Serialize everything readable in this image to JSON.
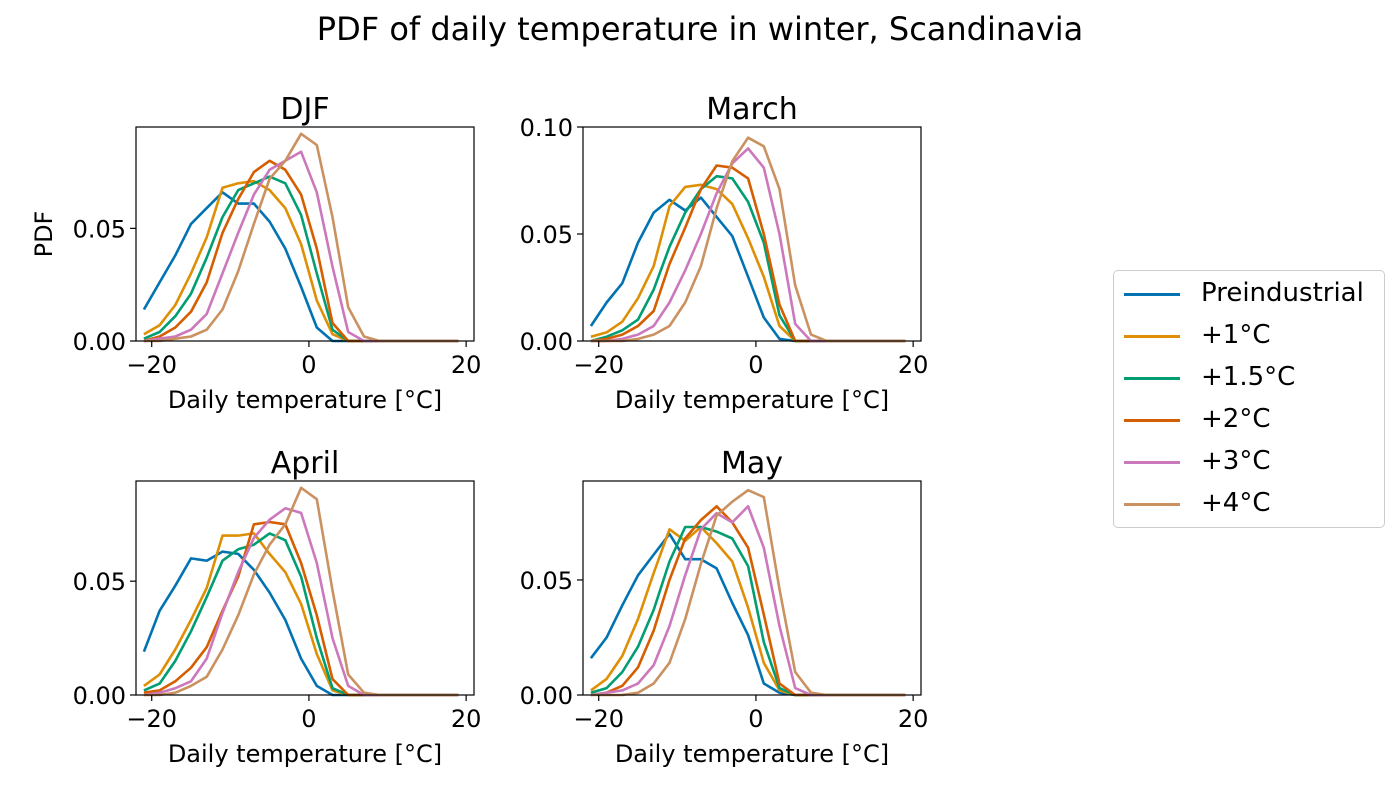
{
  "figure": {
    "suptitle": "PDF of daily temperature in winter, Scandinavia"
  },
  "legend": {
    "placement": "center-right",
    "entries": [
      "Preindustrial",
      "+1°C",
      "+1.5°C",
      "+2°C",
      "+3°C",
      "+4°C"
    ]
  },
  "colors": {
    "Preindustrial": "#0173b2",
    "+1°C": "#de8f05",
    "+1.5°C": "#029e73",
    "+2°C": "#d55e00",
    "+3°C": "#cc78bc",
    "+4°C": "#ca9161"
  },
  "chart_data": [
    {
      "type": "line",
      "title": "DJF",
      "xlabel": "Daily temperature [°C]",
      "ylabel": "PDF",
      "xlim": [
        -22,
        21
      ],
      "ylim": [
        0,
        0.095
      ],
      "xticks": [
        -20,
        0,
        20
      ],
      "xtick_labels": [
        "−20",
        "0",
        "20"
      ],
      "yticks": [
        0.0,
        0.05
      ],
      "ytick_labels": [
        "0.00",
        "0.05"
      ],
      "x": [
        -21,
        -19,
        -17,
        -15,
        -13,
        -11,
        -9,
        -7,
        -5,
        -3,
        -1,
        1,
        3,
        5,
        7,
        9,
        11,
        13,
        15,
        17,
        19
      ],
      "series": [
        {
          "name": "Preindustrial",
          "values": [
            0.014,
            0.026,
            0.038,
            0.052,
            0.059,
            0.066,
            0.061,
            0.061,
            0.053,
            0.041,
            0.024,
            0.006,
            0.0,
            0.0,
            0.0,
            0.0,
            0.0,
            0.0,
            0.0,
            0.0,
            0.0
          ]
        },
        {
          "name": "+1°C",
          "values": [
            0.003,
            0.007,
            0.016,
            0.03,
            0.046,
            0.068,
            0.07,
            0.071,
            0.067,
            0.059,
            0.043,
            0.018,
            0.003,
            0.0,
            0.0,
            0.0,
            0.0,
            0.0,
            0.0,
            0.0,
            0.0
          ]
        },
        {
          "name": "+1.5°C",
          "values": [
            0.001,
            0.004,
            0.011,
            0.021,
            0.037,
            0.055,
            0.067,
            0.07,
            0.073,
            0.07,
            0.056,
            0.03,
            0.005,
            0.0,
            0.0,
            0.0,
            0.0,
            0.0,
            0.0,
            0.0,
            0.0
          ]
        },
        {
          "name": "+2°C",
          "values": [
            0.0,
            0.002,
            0.006,
            0.013,
            0.026,
            0.048,
            0.063,
            0.075,
            0.08,
            0.076,
            0.065,
            0.041,
            0.008,
            0.0,
            0.0,
            0.0,
            0.0,
            0.0,
            0.0,
            0.0,
            0.0
          ]
        },
        {
          "name": "+3°C",
          "values": [
            0.0,
            0.001,
            0.002,
            0.005,
            0.012,
            0.03,
            0.048,
            0.065,
            0.076,
            0.08,
            0.084,
            0.066,
            0.033,
            0.004,
            0.0,
            0.0,
            0.0,
            0.0,
            0.0,
            0.0,
            0.0
          ]
        },
        {
          "name": "+4°C",
          "values": [
            0.0,
            0.0,
            0.001,
            0.002,
            0.005,
            0.014,
            0.031,
            0.052,
            0.072,
            0.08,
            0.092,
            0.087,
            0.055,
            0.015,
            0.002,
            0.0,
            0.0,
            0.0,
            0.0,
            0.0,
            0.0
          ]
        }
      ]
    },
    {
      "type": "line",
      "title": "March",
      "xlabel": "Daily temperature [°C]",
      "ylabel": "",
      "xlim": [
        -22,
        21
      ],
      "ylim": [
        0,
        0.1
      ],
      "xticks": [
        -20,
        0,
        20
      ],
      "xtick_labels": [
        "−20",
        "0",
        "20"
      ],
      "yticks": [
        0.0,
        0.05,
        0.1
      ],
      "ytick_labels": [
        "0.00",
        "0.05",
        "0.10"
      ],
      "x": [
        -21,
        -19,
        -17,
        -15,
        -13,
        -11,
        -9,
        -7,
        -5,
        -3,
        -1,
        1,
        3,
        5,
        7,
        9,
        11,
        13,
        15,
        17,
        19
      ],
      "series": [
        {
          "name": "Preindustrial",
          "values": [
            0.007,
            0.018,
            0.027,
            0.046,
            0.06,
            0.066,
            0.061,
            0.067,
            0.058,
            0.049,
            0.03,
            0.011,
            0.001,
            0.0,
            0.0,
            0.0,
            0.0,
            0.0,
            0.0,
            0.0,
            0.0
          ]
        },
        {
          "name": "+1°C",
          "values": [
            0.002,
            0.004,
            0.009,
            0.02,
            0.035,
            0.063,
            0.072,
            0.073,
            0.071,
            0.064,
            0.048,
            0.03,
            0.007,
            0.0,
            0.0,
            0.0,
            0.0,
            0.0,
            0.0,
            0.0,
            0.0
          ]
        },
        {
          "name": "+1.5°C",
          "values": [
            0.0,
            0.002,
            0.005,
            0.01,
            0.024,
            0.044,
            0.06,
            0.071,
            0.077,
            0.076,
            0.065,
            0.046,
            0.012,
            0.0,
            0.0,
            0.0,
            0.0,
            0.0,
            0.0,
            0.0,
            0.0
          ]
        },
        {
          "name": "+2°C",
          "values": [
            0.0,
            0.001,
            0.003,
            0.007,
            0.014,
            0.036,
            0.053,
            0.071,
            0.082,
            0.081,
            0.076,
            0.05,
            0.017,
            0.0,
            0.0,
            0.0,
            0.0,
            0.0,
            0.0,
            0.0,
            0.0
          ]
        },
        {
          "name": "+3°C",
          "values": [
            0.0,
            0.0,
            0.001,
            0.003,
            0.007,
            0.018,
            0.033,
            0.05,
            0.069,
            0.083,
            0.09,
            0.081,
            0.05,
            0.008,
            0.0,
            0.0,
            0.0,
            0.0,
            0.0,
            0.0,
            0.0
          ]
        },
        {
          "name": "+4°C",
          "values": [
            0.0,
            0.0,
            0.0,
            0.001,
            0.003,
            0.007,
            0.018,
            0.035,
            0.062,
            0.084,
            0.095,
            0.091,
            0.071,
            0.026,
            0.003,
            0.0,
            0.0,
            0.0,
            0.0,
            0.0,
            0.0
          ]
        }
      ]
    },
    {
      "type": "line",
      "title": "April",
      "xlabel": "Daily temperature [°C]",
      "ylabel": "",
      "xlim": [
        -22,
        21
      ],
      "ylim": [
        0,
        0.094
      ],
      "xticks": [
        -20,
        0,
        20
      ],
      "xtick_labels": [
        "−20",
        "0",
        "20"
      ],
      "yticks": [
        0.0,
        0.05
      ],
      "ytick_labels": [
        "0.00",
        "0.05"
      ],
      "x": [
        -21,
        -19,
        -17,
        -15,
        -13,
        -11,
        -9,
        -7,
        -5,
        -3,
        -1,
        1,
        3,
        5,
        7,
        9,
        11,
        13,
        15,
        17,
        19
      ],
      "series": [
        {
          "name": "Preindustrial",
          "values": [
            0.019,
            0.037,
            0.048,
            0.06,
            0.059,
            0.063,
            0.062,
            0.055,
            0.045,
            0.033,
            0.016,
            0.004,
            0.0,
            0.0,
            0.0,
            0.0,
            0.0,
            0.0,
            0.0,
            0.0,
            0.0
          ]
        },
        {
          "name": "+1°C",
          "values": [
            0.004,
            0.009,
            0.02,
            0.033,
            0.047,
            0.07,
            0.07,
            0.071,
            0.062,
            0.054,
            0.04,
            0.018,
            0.002,
            0.0,
            0.0,
            0.0,
            0.0,
            0.0,
            0.0,
            0.0,
            0.0
          ]
        },
        {
          "name": "+1.5°C",
          "values": [
            0.002,
            0.005,
            0.015,
            0.028,
            0.043,
            0.059,
            0.064,
            0.066,
            0.071,
            0.068,
            0.052,
            0.025,
            0.003,
            0.0,
            0.0,
            0.0,
            0.0,
            0.0,
            0.0,
            0.0,
            0.0
          ]
        },
        {
          "name": "+2°C",
          "values": [
            0.001,
            0.002,
            0.006,
            0.012,
            0.021,
            0.037,
            0.052,
            0.075,
            0.076,
            0.075,
            0.058,
            0.035,
            0.007,
            0.0,
            0.0,
            0.0,
            0.0,
            0.0,
            0.0,
            0.0,
            0.0
          ]
        },
        {
          "name": "+3°C",
          "values": [
            0.0,
            0.001,
            0.003,
            0.006,
            0.016,
            0.036,
            0.054,
            0.069,
            0.077,
            0.082,
            0.08,
            0.058,
            0.025,
            0.004,
            0.0,
            0.0,
            0.0,
            0.0,
            0.0,
            0.0,
            0.0
          ]
        },
        {
          "name": "+4°C",
          "values": [
            0.0,
            0.0,
            0.001,
            0.004,
            0.008,
            0.02,
            0.035,
            0.053,
            0.066,
            0.075,
            0.091,
            0.086,
            0.046,
            0.009,
            0.001,
            0.0,
            0.0,
            0.0,
            0.0,
            0.0,
            0.0
          ]
        }
      ]
    },
    {
      "type": "line",
      "title": "May",
      "xlabel": "Daily temperature [°C]",
      "ylabel": "",
      "xlim": [
        -22,
        21
      ],
      "ylim": [
        0,
        0.093
      ],
      "xticks": [
        -20,
        0,
        20
      ],
      "xtick_labels": [
        "−20",
        "0",
        "20"
      ],
      "yticks": [
        0.0,
        0.05
      ],
      "ytick_labels": [
        "0.00",
        "0.05"
      ],
      "x": [
        -21,
        -19,
        -17,
        -15,
        -13,
        -11,
        -9,
        -7,
        -5,
        -3,
        -1,
        1,
        3,
        5,
        7,
        9,
        11,
        13,
        15,
        17,
        19
      ],
      "series": [
        {
          "name": "Preindustrial",
          "values": [
            0.016,
            0.025,
            0.039,
            0.052,
            0.061,
            0.07,
            0.059,
            0.059,
            0.055,
            0.04,
            0.026,
            0.005,
            0.001,
            0.0,
            0.0,
            0.0,
            0.0,
            0.0,
            0.0,
            0.0,
            0.0
          ]
        },
        {
          "name": "+1°C",
          "values": [
            0.002,
            0.007,
            0.017,
            0.033,
            0.053,
            0.072,
            0.067,
            0.073,
            0.066,
            0.058,
            0.038,
            0.014,
            0.002,
            0.0,
            0.0,
            0.0,
            0.0,
            0.0,
            0.0,
            0.0,
            0.0
          ]
        },
        {
          "name": "+1.5°C",
          "values": [
            0.001,
            0.003,
            0.01,
            0.021,
            0.037,
            0.058,
            0.073,
            0.073,
            0.071,
            0.068,
            0.056,
            0.023,
            0.003,
            0.0,
            0.0,
            0.0,
            0.0,
            0.0,
            0.0,
            0.0,
            0.0
          ]
        },
        {
          "name": "+2°C",
          "values": [
            0.0,
            0.001,
            0.004,
            0.012,
            0.028,
            0.05,
            0.068,
            0.076,
            0.082,
            0.075,
            0.064,
            0.035,
            0.005,
            0.0,
            0.0,
            0.0,
            0.0,
            0.0,
            0.0,
            0.0,
            0.0
          ]
        },
        {
          "name": "+3°C",
          "values": [
            0.0,
            0.001,
            0.002,
            0.005,
            0.013,
            0.03,
            0.052,
            0.072,
            0.079,
            0.075,
            0.082,
            0.064,
            0.03,
            0.003,
            0.0,
            0.0,
            0.0,
            0.0,
            0.0,
            0.0,
            0.0
          ]
        },
        {
          "name": "+4°C",
          "values": [
            0.0,
            0.0,
            0.0,
            0.001,
            0.005,
            0.014,
            0.033,
            0.057,
            0.078,
            0.084,
            0.089,
            0.086,
            0.046,
            0.01,
            0.001,
            0.0,
            0.0,
            0.0,
            0.0,
            0.0,
            0.0
          ]
        }
      ]
    }
  ]
}
